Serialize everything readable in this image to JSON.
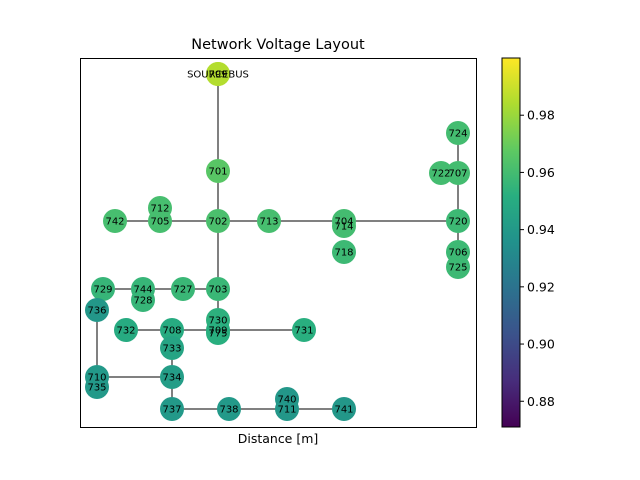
{
  "chart_data": {
    "type": "network",
    "title": "Network Voltage Layout",
    "xlabel": "Distance [m]",
    "colorbar": {
      "range": [
        0.871,
        1.0
      ],
      "ticks": [
        "0.88",
        "0.90",
        "0.92",
        "0.94",
        "0.96",
        "0.98"
      ],
      "colormap": "viridis"
    },
    "nodes": [
      {
        "id": "799",
        "label": "799",
        "value": 0.985
      },
      {
        "id": "SOURCEBUS",
        "label": "SOURCEBUS",
        "value": 0.985
      },
      {
        "id": "701",
        "label": "701",
        "value": 0.966
      },
      {
        "id": "702",
        "label": "702",
        "value": 0.962
      },
      {
        "id": "705",
        "label": "705",
        "value": 0.961
      },
      {
        "id": "712",
        "label": "712",
        "value": 0.961
      },
      {
        "id": "742",
        "label": "742",
        "value": 0.961
      },
      {
        "id": "713",
        "label": "713",
        "value": 0.961
      },
      {
        "id": "704",
        "label": "704",
        "value": 0.96
      },
      {
        "id": "714",
        "label": "714",
        "value": 0.96
      },
      {
        "id": "718",
        "label": "718",
        "value": 0.958
      },
      {
        "id": "720",
        "label": "720",
        "value": 0.958
      },
      {
        "id": "706",
        "label": "706",
        "value": 0.958
      },
      {
        "id": "725",
        "label": "725",
        "value": 0.958
      },
      {
        "id": "707",
        "label": "707",
        "value": 0.96
      },
      {
        "id": "722",
        "label": "722",
        "value": 0.96
      },
      {
        "id": "724",
        "label": "724",
        "value": 0.96
      },
      {
        "id": "703",
        "label": "703",
        "value": 0.957
      },
      {
        "id": "727",
        "label": "727",
        "value": 0.957
      },
      {
        "id": "744",
        "label": "744",
        "value": 0.956
      },
      {
        "id": "728",
        "label": "728",
        "value": 0.956
      },
      {
        "id": "729",
        "label": "729",
        "value": 0.956
      },
      {
        "id": "730",
        "label": "730",
        "value": 0.953
      },
      {
        "id": "709",
        "label": "709",
        "value": 0.952
      },
      {
        "id": "775",
        "label": "775",
        "value": 0.952
      },
      {
        "id": "731",
        "label": "731",
        "value": 0.952
      },
      {
        "id": "708",
        "label": "708",
        "value": 0.95
      },
      {
        "id": "732",
        "label": "732",
        "value": 0.95
      },
      {
        "id": "733",
        "label": "733",
        "value": 0.946
      },
      {
        "id": "734",
        "label": "734",
        "value": 0.942
      },
      {
        "id": "710",
        "label": "710",
        "value": 0.94
      },
      {
        "id": "735",
        "label": "735",
        "value": 0.94
      },
      {
        "id": "736",
        "label": "736",
        "value": 0.939
      },
      {
        "id": "737",
        "label": "737",
        "value": 0.94
      },
      {
        "id": "738",
        "label": "738",
        "value": 0.94
      },
      {
        "id": "711",
        "label": "711",
        "value": 0.939
      },
      {
        "id": "740",
        "label": "740",
        "value": 0.939
      },
      {
        "id": "741",
        "label": "741",
        "value": 0.939
      }
    ],
    "edges": [
      [
        "SOURCEBUS",
        "701"
      ],
      [
        "701",
        "702"
      ],
      [
        "742",
        "705"
      ],
      [
        "705",
        "702"
      ],
      [
        "705",
        "712"
      ],
      [
        "702",
        "713"
      ],
      [
        "713",
        "704"
      ],
      [
        "704",
        "714"
      ],
      [
        "704",
        "720"
      ],
      [
        "720",
        "707"
      ],
      [
        "707",
        "724"
      ],
      [
        "707",
        "722"
      ],
      [
        "720",
        "706"
      ],
      [
        "706",
        "725"
      ],
      [
        "702",
        "703"
      ],
      [
        "703",
        "727"
      ],
      [
        "727",
        "744"
      ],
      [
        "744",
        "729"
      ],
      [
        "744",
        "728"
      ],
      [
        "703",
        "730"
      ],
      [
        "730",
        "709"
      ],
      [
        "709",
        "731"
      ],
      [
        "709",
        "708"
      ],
      [
        "708",
        "732"
      ],
      [
        "708",
        "733"
      ],
      [
        "733",
        "734"
      ],
      [
        "734",
        "710"
      ],
      [
        "710",
        "736"
      ],
      [
        "710",
        "735"
      ],
      [
        "734",
        "737"
      ],
      [
        "737",
        "738"
      ],
      [
        "738",
        "711"
      ],
      [
        "711",
        "741"
      ],
      [
        "711",
        "740"
      ]
    ]
  }
}
